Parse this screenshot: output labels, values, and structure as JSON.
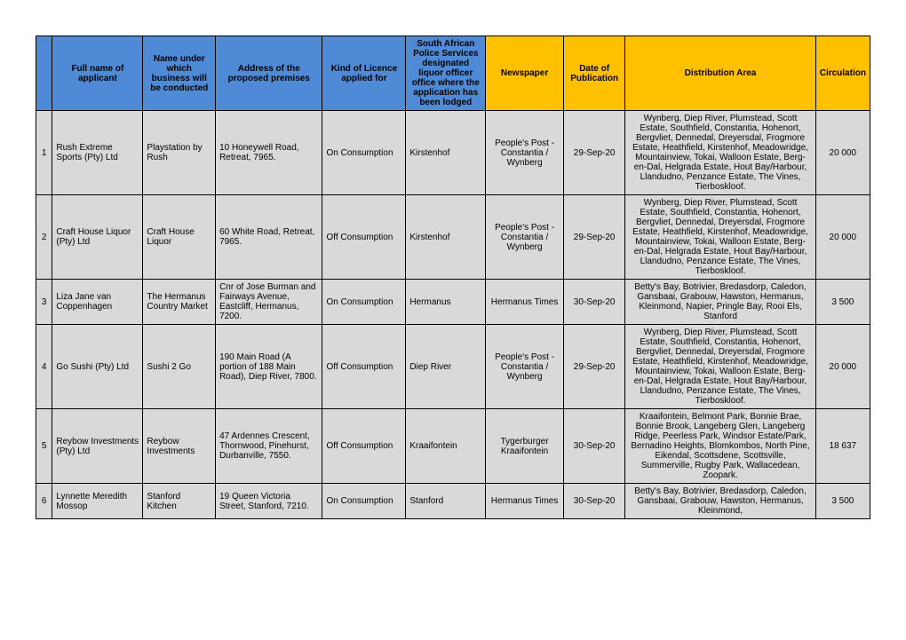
{
  "headers": {
    "num": "",
    "applicant": "Full name of applicant",
    "business": "Name under which business will be conducted",
    "address": "Address of the proposed premises",
    "licence": "Kind of Licence applied for",
    "saps": "South African Police Services designated liquor officer office where the application has been lodged",
    "newspaper": "Newspaper",
    "date": "Date of Publication",
    "distribution": "Distribution Area",
    "circulation": "Circulation"
  },
  "colors": {
    "header_blue": "#4f8ad6",
    "header_yellow": "#ffc000",
    "row_bg": "#d9d9d9",
    "border": "#000000",
    "page_bg": "#ffffff"
  },
  "rows": [
    {
      "num": "1",
      "applicant": "Rush Extreme Sports (Pty) Ltd",
      "business": "Playstation by Rush",
      "address": "10 Honeywell Road, Retreat, 7965.",
      "licence": "On Consumption",
      "saps": "Kirstenhof",
      "newspaper": "People's Post - Constantia / Wynberg",
      "date": "29-Sep-20",
      "distribution": "Wynberg, Diep River, Plumstead, Scott Estate, Southfield, Constantia, Hohenort, Bergvliet, Dennedal, Dreyersdal, Frogmore Estate, Heathfield, Kirstenhof, Meadowridge, Mountainview, Tokai, Walloon Estate, Berg-en-Dal, Helgrada Estate, Hout Bay/Harbour, Llandudno, Penzance Estate, The Vines, Tierboskloof.",
      "circulation": "20 000"
    },
    {
      "num": "2",
      "applicant": "Craft House Liquor (Pty) Ltd",
      "business": "Craft House Liquor",
      "address": "60 White Road, Retreat, 7965.",
      "licence": "Off Consumption",
      "saps": "Kirstenhof",
      "newspaper": "People's Post - Constantia / Wynberg",
      "date": "29-Sep-20",
      "distribution": "Wynberg, Diep River, Plumstead, Scott Estate, Southfield, Constantia, Hohenort, Bergvliet, Dennedal, Dreyersdal, Frogmore Estate, Heathfield, Kirstenhof, Meadowridge, Mountainview, Tokai, Walloon Estate, Berg-en-Dal, Helgrada Estate, Hout Bay/Harbour, Llandudno, Penzance Estate, The Vines, Tierboskloof.",
      "circulation": "20 000"
    },
    {
      "num": "3",
      "applicant": "Liza Jane van Coppenhagen",
      "business": "The Hermanus Country Market",
      "address": "Cnr of Jose Burman and Fairways Avenue, Eastcliff, Hermanus, 7200.",
      "licence": "On Consumption",
      "saps": "Hermanus",
      "newspaper": "Hermanus Times",
      "date": "30-Sep-20",
      "distribution": "Betty's Bay, Botrivier, Bredasdorp, Caledon, Gansbaai, Grabouw, Hawston, Hermanus, Kleinmond, Napier, Pringle Bay, Rooi Els, Stanford",
      "circulation": "3 500"
    },
    {
      "num": "4",
      "applicant": "Go Sushi (Pty) Ltd",
      "business": "Sushi 2 Go",
      "address": "190 Main Road (A portion of 188 Main Road), Diep River, 7800.",
      "licence": "Off Consumption",
      "saps": "Diep River",
      "newspaper": "People's Post - Constantia / Wynberg",
      "date": "29-Sep-20",
      "distribution": "Wynberg, Diep River, Plumstead, Scott Estate, Southfield, Constantia, Hohenort, Bergvliet, Dennedal, Dreyersdal, Frogmore Estate, Heathfield, Kirstenhof, Meadowridge, Mountainview, Tokai, Walloon Estate, Berg-en-Dal, Helgrada Estate, Hout Bay/Harbour, Llandudno, Penzance Estate, The Vines, Tierboskloof.",
      "circulation": "20 000"
    },
    {
      "num": "5",
      "applicant": "Reybow Investments (Pty) Ltd",
      "business": "Reybow Investments",
      "address": "47 Ardennes Crescent, Thornwood, Pinehurst, Durbanville, 7550.",
      "licence": "Off Consumption",
      "saps": "Kraaifontein",
      "newspaper": "Tygerburger Kraaifontein",
      "date": "30-Sep-20",
      "distribution": "Kraaifontein, Belmont Park, Bonnie Brae, Bonnie Brook, Langeberg Glen, Langeberg Ridge, Peerless Park, Windsor Estate/Park, Bernadino Heights, Blomkombos, North Pine, Eikendal, Scottsdene, Scottsville, Summerville, Rugby Park, Wallacedean, Zoopark.",
      "circulation": "18 637"
    },
    {
      "num": "6",
      "applicant": "Lynnette Meredith Mossop",
      "business": "Stanford Kitchen",
      "address": "19 Queen Victoria Street, Stanford, 7210.",
      "licence": "On Consumption",
      "saps": "Stanford",
      "newspaper": "Hermanus Times",
      "date": "30-Sep-20",
      "distribution": "Betty's Bay, Botrivier, Bredasdorp, Caledon, Gansbaai, Grabouw, Hawston, Hermanus, Kleinmond,",
      "circulation": "3 500"
    }
  ]
}
